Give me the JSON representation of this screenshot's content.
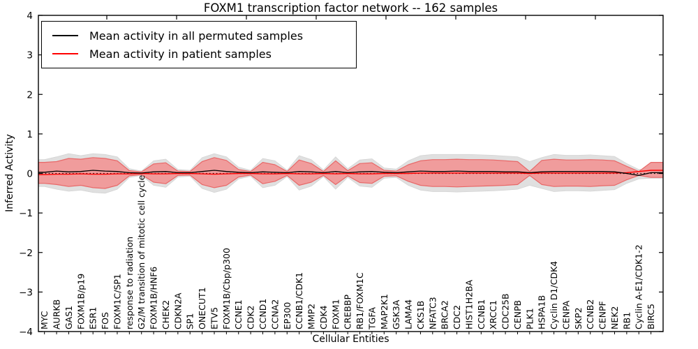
{
  "figure": {
    "title": "FOXM1 transcription factor network -- 162 samples",
    "xlabel": "Cellular Entities",
    "ylabel": "Inferred Activity"
  },
  "legend": {
    "entries": [
      {
        "label": "Mean activity in all permuted samples",
        "color": "#000000"
      },
      {
        "label": "Mean activity in patient samples",
        "color": "#ff0000"
      }
    ]
  },
  "chart_data": {
    "type": "area",
    "title": "FOXM1 transcription factor network -- 162 samples",
    "xlabel": "Cellular Entities",
    "ylabel": "Inferred Activity",
    "ylim": [
      -4,
      4
    ],
    "yticks": [
      4,
      3,
      2,
      1,
      0,
      -1,
      -2,
      -3,
      -4
    ],
    "yticklabels": [
      "4",
      "3",
      "2",
      "1",
      "0",
      "−1",
      "−2",
      "−3",
      "−4"
    ],
    "grid": false,
    "legend_position": "upper left",
    "zero_line": true,
    "categories": [
      "MYC",
      "AURKB",
      "GAS1",
      "FOXM1B/p19",
      "ESR1",
      "FOS",
      "FOXM1C/SP1",
      "response to radiation",
      "G2/M transition of mitotic cell cycle",
      "FOXM1B/HNF6",
      "CHEK2",
      "CDKN2A",
      "SP1",
      "ONECUT1",
      "ETV5",
      "FOXM1B/Cbp/p300",
      "CCNE1",
      "CDK2",
      "CCND1",
      "CCNA2",
      "EP300",
      "CCNB1/CDK1",
      "MMP2",
      "CDK4",
      "FOXM1",
      "CREBBP",
      "RB1/FOXM1C",
      "TGFA",
      "MAP2K1",
      "GSK3A",
      "LAMA4",
      "CKS1B",
      "NFATC3",
      "BRCA2",
      "CDC2",
      "HIST1H2BA",
      "CCNB1",
      "XRCC1",
      "CDC25B",
      "CENPB",
      "PLK1",
      "HSPA1B",
      "Cyclin D1/CDK4",
      "CENPA",
      "SKP2",
      "CCNB2",
      "CENPF",
      "NEK2",
      "RB1",
      "Cyclin A-E1/CDK1-2",
      "BIRC5"
    ],
    "series": [
      {
        "name": "Permuted band upper",
        "values": [
          0.35,
          0.42,
          0.5,
          0.45,
          0.5,
          0.48,
          0.42,
          0.12,
          0.06,
          0.32,
          0.36,
          0.1,
          0.08,
          0.4,
          0.5,
          0.42,
          0.16,
          0.08,
          0.38,
          0.32,
          0.08,
          0.45,
          0.35,
          0.09,
          0.42,
          0.12,
          0.34,
          0.37,
          0.14,
          0.11,
          0.32,
          0.45,
          0.48,
          0.48,
          0.48,
          0.48,
          0.47,
          0.46,
          0.44,
          0.42,
          0.3,
          0.4,
          0.48,
          0.46,
          0.46,
          0.47,
          0.45,
          0.43,
          0.25,
          0.1,
          0.1
        ]
      },
      {
        "name": "Permuted band lower",
        "values": [
          -0.33,
          -0.4,
          -0.45,
          -0.42,
          -0.48,
          -0.5,
          -0.4,
          -0.1,
          -0.05,
          -0.3,
          -0.35,
          -0.09,
          -0.07,
          -0.38,
          -0.48,
          -0.4,
          -0.14,
          -0.07,
          -0.36,
          -0.3,
          -0.08,
          -0.42,
          -0.32,
          -0.08,
          -0.4,
          -0.1,
          -0.32,
          -0.35,
          -0.12,
          -0.1,
          -0.3,
          -0.42,
          -0.46,
          -0.46,
          -0.47,
          -0.46,
          -0.45,
          -0.44,
          -0.42,
          -0.4,
          -0.3,
          -0.38,
          -0.46,
          -0.44,
          -0.44,
          -0.45,
          -0.43,
          -0.41,
          -0.25,
          -0.14,
          -0.12
        ]
      },
      {
        "name": "Patient band upper",
        "values": [
          0.28,
          0.3,
          0.38,
          0.36,
          0.4,
          0.38,
          0.32,
          0.07,
          0.04,
          0.24,
          0.27,
          0.06,
          0.05,
          0.3,
          0.4,
          0.33,
          0.1,
          0.05,
          0.28,
          0.22,
          0.05,
          0.34,
          0.25,
          0.05,
          0.32,
          0.07,
          0.25,
          0.27,
          0.08,
          0.06,
          0.22,
          0.32,
          0.35,
          0.35,
          0.36,
          0.35,
          0.35,
          0.34,
          0.32,
          0.3,
          0.05,
          0.33,
          0.36,
          0.34,
          0.34,
          0.35,
          0.34,
          0.32,
          0.18,
          0.05,
          0.28
        ]
      },
      {
        "name": "Patient band lower",
        "values": [
          -0.25,
          -0.28,
          -0.33,
          -0.3,
          -0.36,
          -0.38,
          -0.3,
          -0.06,
          -0.03,
          -0.22,
          -0.26,
          -0.05,
          -0.04,
          -0.28,
          -0.36,
          -0.3,
          -0.09,
          -0.04,
          -0.26,
          -0.2,
          -0.05,
          -0.3,
          -0.22,
          -0.05,
          -0.28,
          -0.06,
          -0.23,
          -0.25,
          -0.07,
          -0.06,
          -0.2,
          -0.3,
          -0.33,
          -0.33,
          -0.34,
          -0.33,
          -0.32,
          -0.31,
          -0.3,
          -0.28,
          -0.05,
          -0.28,
          -0.33,
          -0.32,
          -0.32,
          -0.33,
          -0.31,
          -0.3,
          -0.16,
          -0.05,
          -0.1
        ]
      },
      {
        "name": "Mean activity in all permuted samples",
        "values": [
          0.03,
          0.06,
          0.04,
          0.05,
          0.08,
          0.06,
          0.05,
          0.02,
          0.01,
          0.04,
          0.05,
          0.02,
          0.02,
          0.05,
          0.08,
          0.05,
          0.03,
          0.02,
          0.04,
          0.03,
          0.02,
          0.05,
          0.04,
          0.02,
          0.05,
          0.02,
          0.04,
          0.05,
          0.03,
          0.02,
          0.04,
          0.06,
          0.05,
          0.05,
          0.06,
          0.05,
          0.05,
          0.05,
          0.04,
          0.04,
          0.02,
          0.04,
          0.05,
          0.05,
          0.05,
          0.05,
          0.05,
          0.04,
          0.0,
          -0.05,
          0.02
        ]
      },
      {
        "name": "Mean activity in patient samples",
        "values": [
          -0.03,
          -0.02,
          -0.02,
          -0.01,
          -0.02,
          -0.02,
          -0.01,
          -0.01,
          0.0,
          -0.01,
          -0.01,
          0.0,
          0.0,
          -0.01,
          -0.02,
          -0.01,
          0.0,
          0.0,
          -0.01,
          -0.01,
          0.0,
          -0.01,
          -0.01,
          0.0,
          -0.01,
          0.0,
          -0.01,
          -0.01,
          0.0,
          0.0,
          0.0,
          0.01,
          0.01,
          0.01,
          0.01,
          0.01,
          0.01,
          0.01,
          0.01,
          0.01,
          0.0,
          0.01,
          0.01,
          0.01,
          0.01,
          0.01,
          0.01,
          0.01,
          0.02,
          0.05,
          0.08
        ]
      }
    ],
    "colors": {
      "permuted_band": "#e0e0e0",
      "patient_band_fill": "#f09c9c",
      "patient_band_edge": "#e86868",
      "mean_permuted_line": "#000000",
      "mean_patient_line": "#ff0000",
      "zero_line": "#000000",
      "axis": "#000000"
    }
  }
}
